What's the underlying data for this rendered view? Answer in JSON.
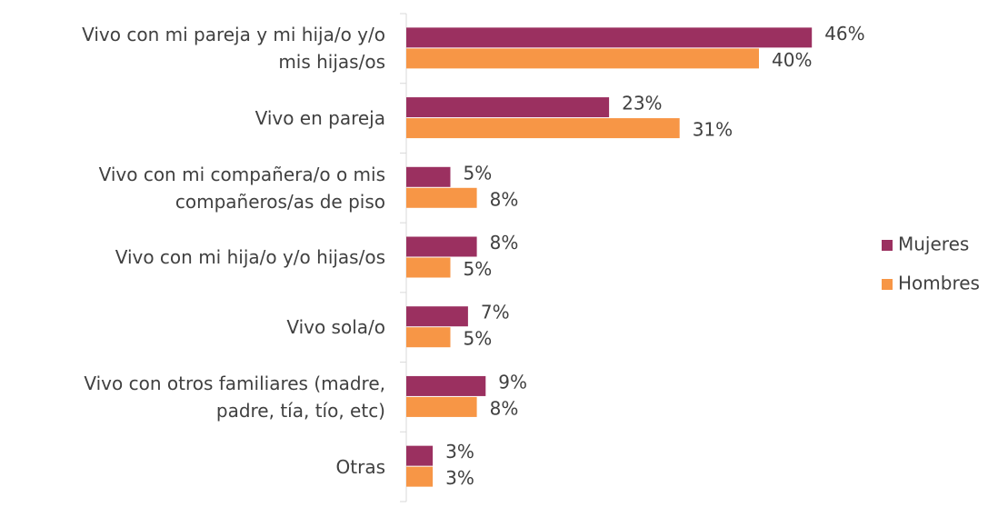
{
  "chart_data": {
    "type": "bar",
    "orientation": "horizontal",
    "categories": [
      "Vivo con mi pareja y mi hija/o y/o\nmis hijas/os",
      "Vivo en pareja",
      "Vivo con mi compañera/o o mis\ncompañeros/as de piso",
      "Vivo con mi hija/o y/o hijas/os",
      "Vivo sola/o",
      "Vivo con otros familiares (madre,\npadre, tía, tío, etc)",
      "Otras"
    ],
    "series": [
      {
        "name": "Mujeres",
        "color": "#9b3060",
        "values": [
          46,
          23,
          5,
          8,
          7,
          9,
          3
        ],
        "value_labels": [
          "46%",
          "23%",
          "5%",
          "8%",
          "7%",
          "9%",
          "3%"
        ]
      },
      {
        "name": "Hombres",
        "color": "#f79646",
        "values": [
          40,
          31,
          8,
          5,
          5,
          8,
          3
        ],
        "value_labels": [
          "40%",
          "31%",
          "8%",
          "5%",
          "5%",
          "8%",
          "3%"
        ]
      }
    ],
    "xlim": [
      0,
      50
    ],
    "legend": "right"
  }
}
